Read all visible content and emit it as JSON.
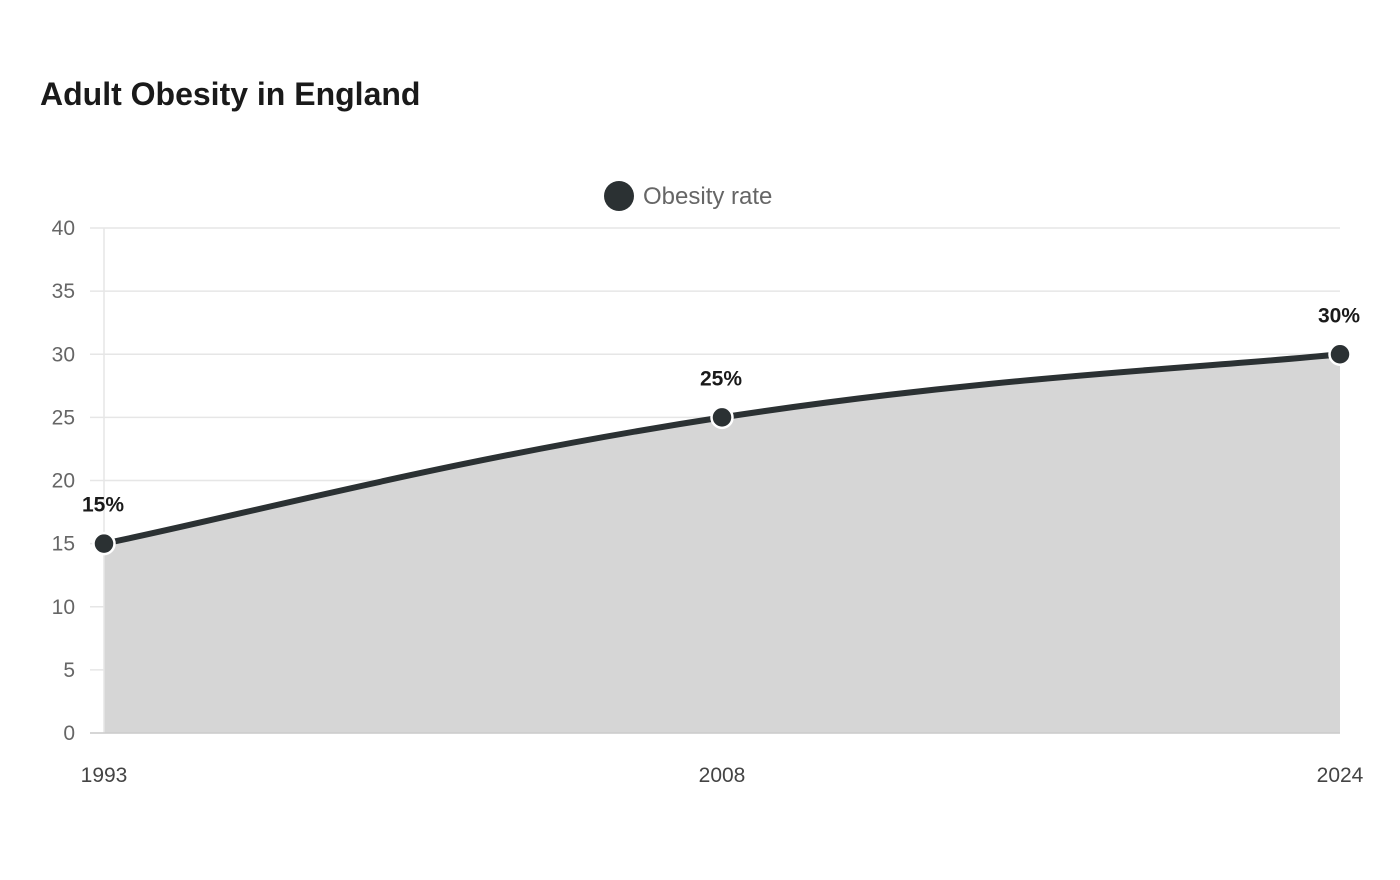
{
  "chart_data": {
    "type": "area",
    "title": "Adult Obesity in England",
    "categories": [
      "1993",
      "2008",
      "2024"
    ],
    "series": [
      {
        "name": "Obesity rate",
        "values": [
          15,
          25,
          30
        ],
        "labels": [
          "15%",
          "25%",
          "30%"
        ]
      }
    ],
    "ylim": [
      0,
      40
    ],
    "yticks": [
      "0",
      "5",
      "10",
      "15",
      "20",
      "25",
      "30",
      "35",
      "40"
    ],
    "legend_position": "top-center",
    "grid": true,
    "colors": {
      "line": "#2b3133",
      "area": "#d6d6d6",
      "grid": "#e6e6e6",
      "axis": "#cccccc"
    }
  }
}
